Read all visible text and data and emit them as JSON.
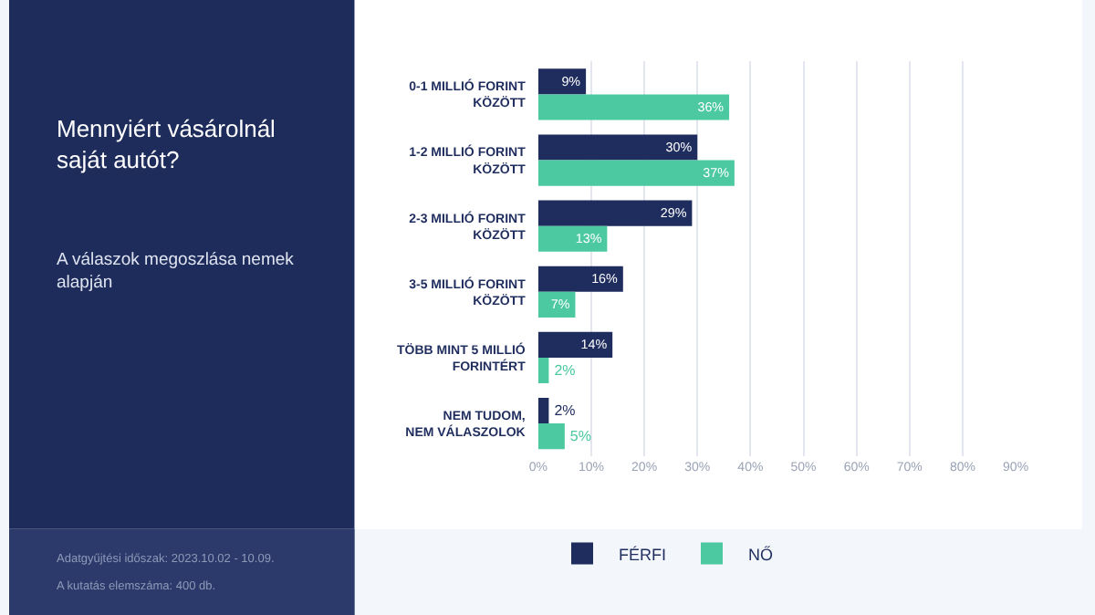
{
  "chart_data": {
    "type": "bar",
    "orientation": "horizontal",
    "title": "Mennyiért vásárolnál saját autót?",
    "subtitle": "A válaszok megoszlása nemek alapján",
    "categories": [
      "0-1 MILLIÓ FORINT\nKÖZÖTT",
      "1-2 MILLIÓ FORINT\nKÖZÖTT",
      "2-3 MILLIÓ FORINT\nKÖZÖTT",
      "3-5 MILLIÓ FORINT\nKÖZÖTT",
      "TÖBB MINT 5 MILLIÓ\nFORINTÉRT",
      "NEM TUDOM,\nNEM VÁLASZOLOK"
    ],
    "series": [
      {
        "name": "FÉRFI",
        "color": "#1f2d5e",
        "values": [
          9,
          30,
          29,
          16,
          14,
          2
        ],
        "value_labels": [
          "9%",
          "30%",
          "29%",
          "16%",
          "14%",
          "2%"
        ]
      },
      {
        "name": "NŐ",
        "color": "#4cc9a0",
        "values": [
          36,
          37,
          13,
          7,
          2,
          5
        ],
        "value_labels": [
          "36%",
          "37%",
          "13%",
          "7%",
          "2%",
          "5%"
        ]
      }
    ],
    "xlim": [
      0,
      90
    ],
    "xticks": [
      {
        "value": 0,
        "label": "0%"
      },
      {
        "value": 10,
        "label": "10%"
      },
      {
        "value": 20,
        "label": "20%"
      },
      {
        "value": 30,
        "label": "30%"
      },
      {
        "value": 40,
        "label": "40%"
      },
      {
        "value": 50,
        "label": "50%"
      },
      {
        "value": 60,
        "label": "60%"
      },
      {
        "value": 70,
        "label": "70%"
      },
      {
        "value": 80,
        "label": "80%"
      },
      {
        "value": 90,
        "label": "90%"
      }
    ],
    "grid": "x",
    "legend": "bottom",
    "annotations": [
      "Adatgyűjtési időszak: 2023.10.02 - 10.09.",
      "A kutatás elemszáma: 400 db."
    ]
  }
}
